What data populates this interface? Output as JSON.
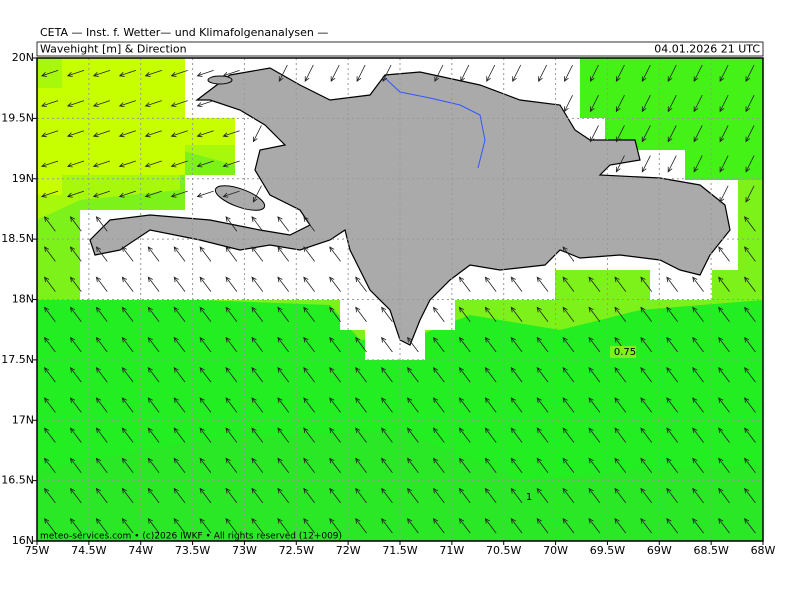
{
  "header": "CETA — Inst. f. Wetter— und Klimafolgenanalysen —",
  "title": "Wavehight [m] & Direction",
  "valid_time": "04.01.2026 21 UTC",
  "x_ticks": [
    "75W",
    "74.5W",
    "74W",
    "73.5W",
    "73W",
    "72.5W",
    "72W",
    "71.5W",
    "71W",
    "70.5W",
    "70W",
    "69.5W",
    "69W",
    "68.5W",
    "68W"
  ],
  "y_ticks": [
    "20N",
    "19.5N",
    "19N",
    "18.5N",
    "18N",
    "17.5N",
    "17N",
    "16.5N",
    "16N"
  ],
  "contour_labels": [
    "0.75",
    "1"
  ],
  "footer": "meteo-services.com • (c)2026 IWKF • All rights reserved (12+009)"
}
